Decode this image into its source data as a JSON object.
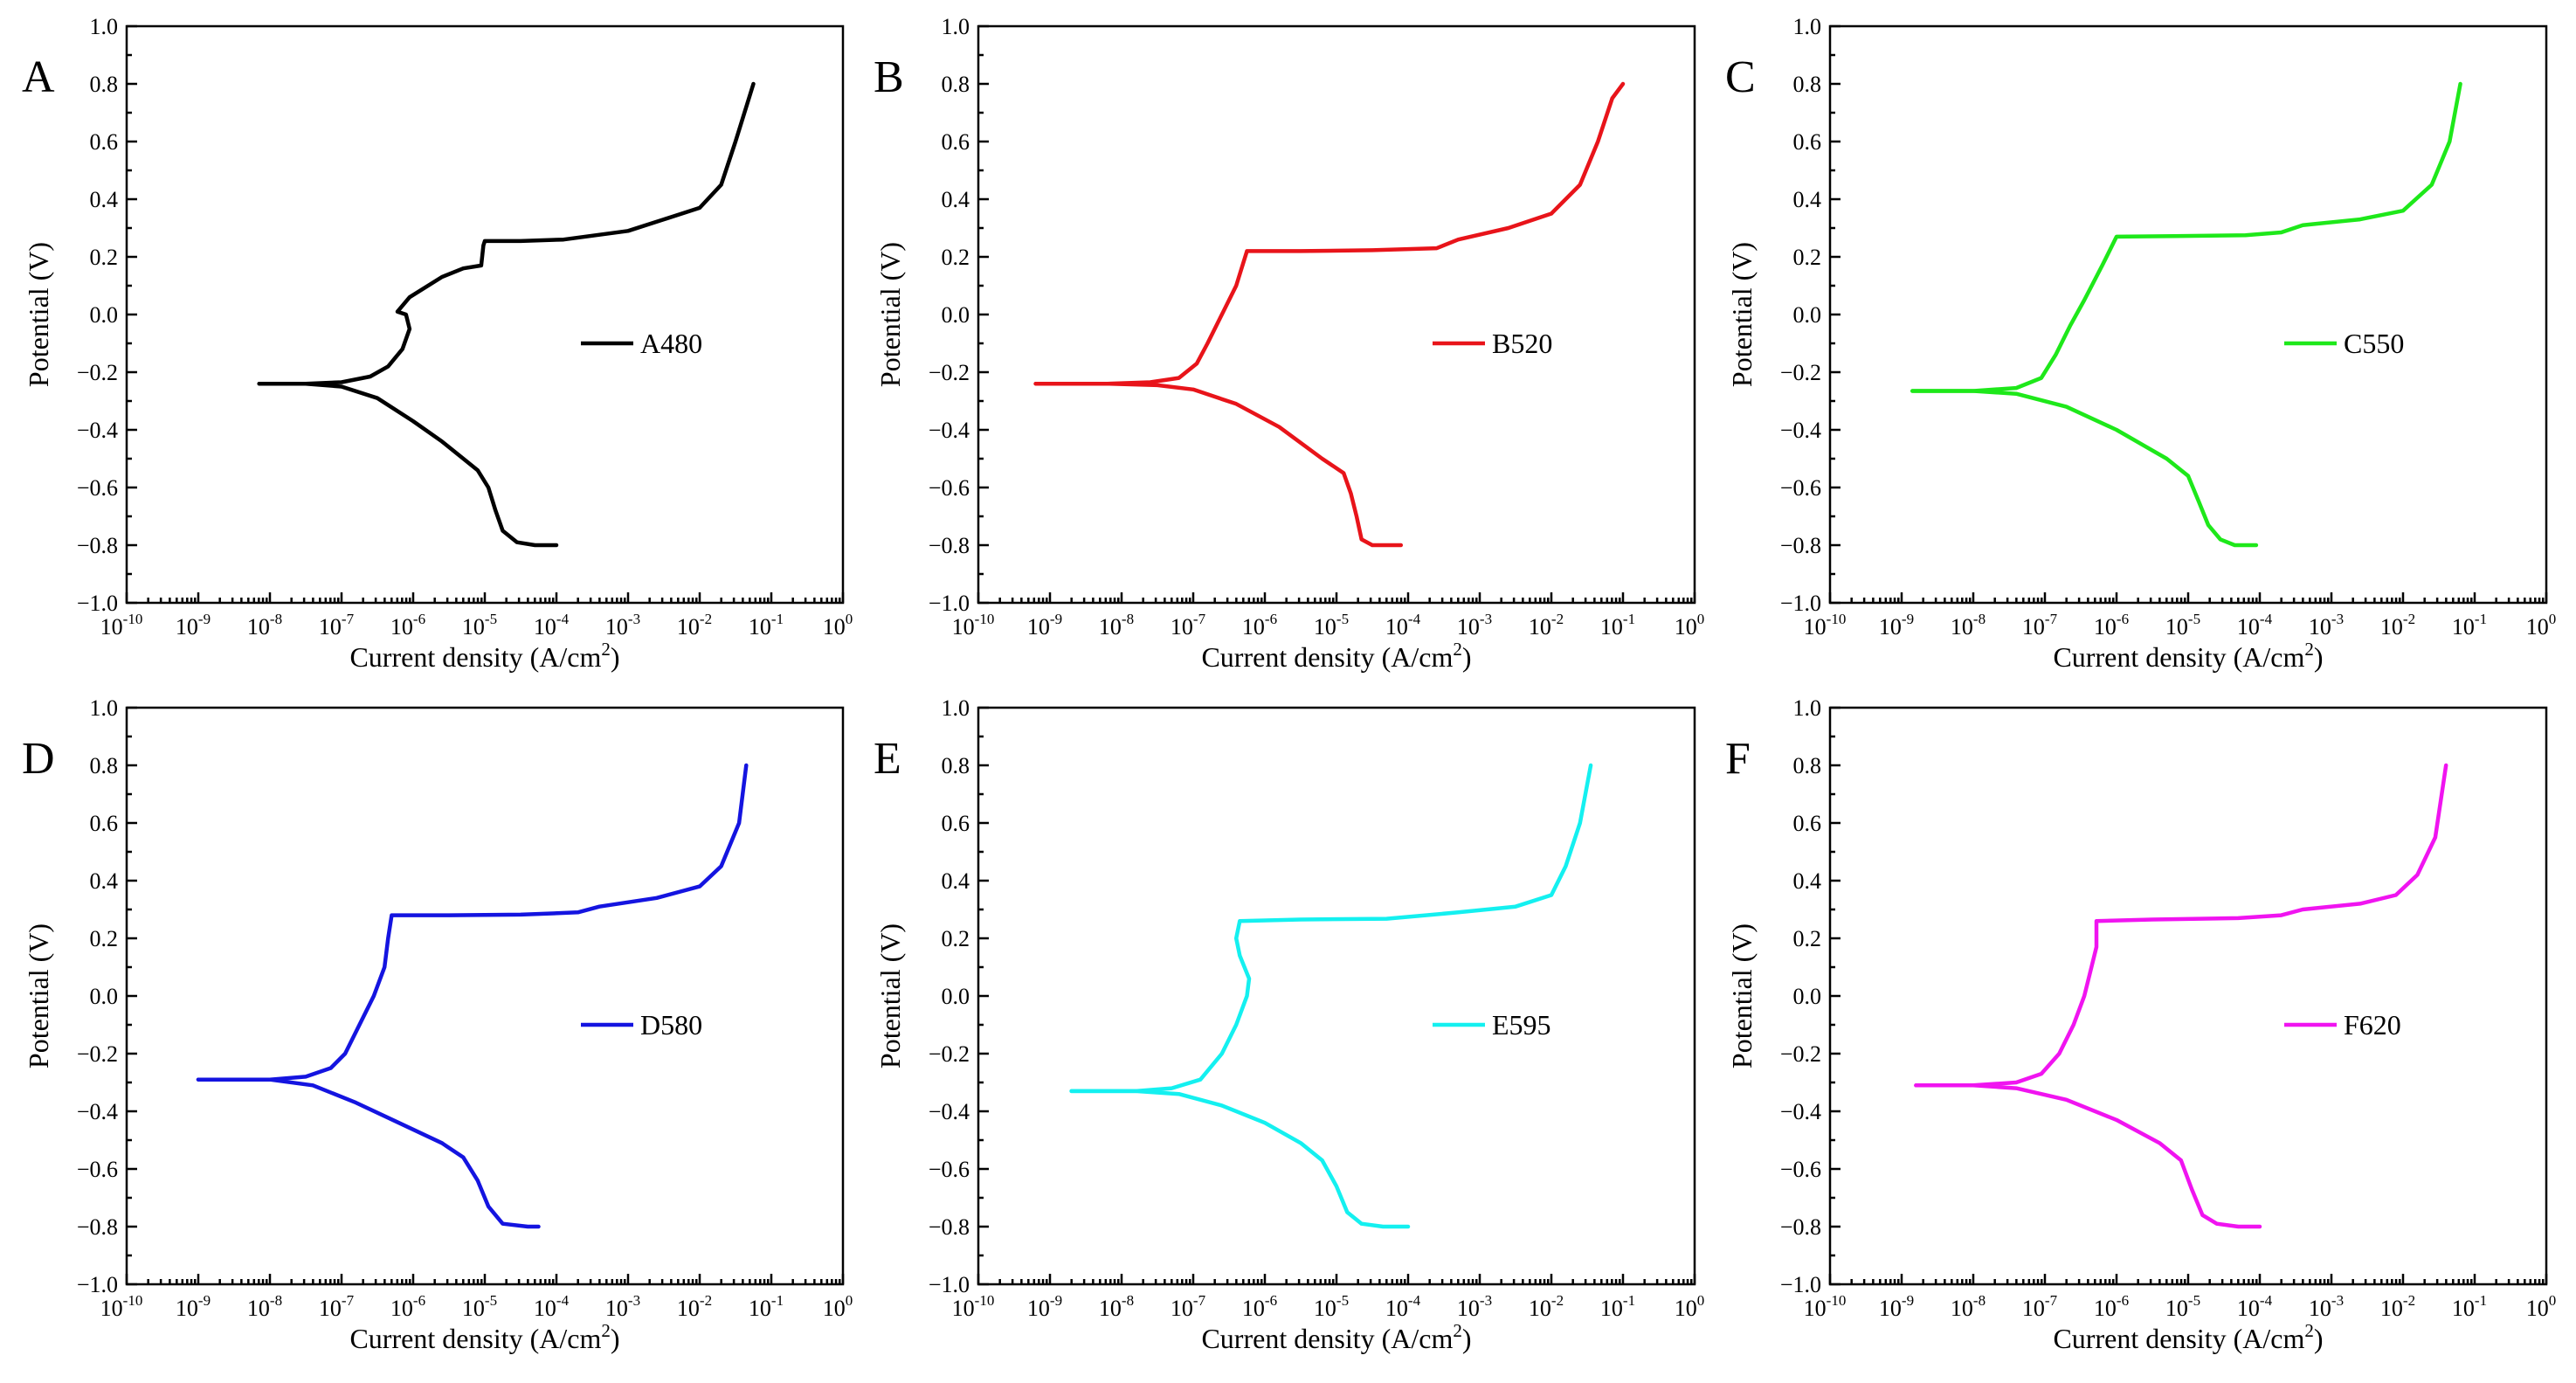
{
  "colors": {
    "A": "#000000",
    "B": "#e8141a",
    "C": "#1ee81a",
    "D": "#1414e0",
    "E": "#14f0f0",
    "F": "#f014f0"
  },
  "chart_data": [
    {
      "type": "line",
      "panel": "A",
      "legend": "A480",
      "color_key": "A",
      "xlabel": "Current density (A/cm",
      "xlabel_sup": "2",
      "xlabel_tail": ")",
      "ylabel": "Potential (V)",
      "xscale": "log",
      "xlim_exp": [
        -10,
        0
      ],
      "ylim": [
        -1.0,
        1.0
      ],
      "x_ticks": [
        {
          "base": "10",
          "exp": "-10"
        },
        {
          "base": "10",
          "exp": "-9"
        },
        {
          "base": "10",
          "exp": "-8"
        },
        {
          "base": "10",
          "exp": "-7"
        },
        {
          "base": "10",
          "exp": "-6"
        },
        {
          "base": "10",
          "exp": "-5"
        },
        {
          "base": "10",
          "exp": "-4"
        },
        {
          "base": "10",
          "exp": "-3"
        },
        {
          "base": "10",
          "exp": "-2"
        },
        {
          "base": "10",
          "exp": "-1"
        },
        {
          "base": "10",
          "exp": "0"
        }
      ],
      "y_ticks": [
        "−1.0",
        "−0.8",
        "−0.6",
        "−0.4",
        "−0.2",
        "0.0",
        "0.2",
        "0.4",
        "0.6",
        "0.8",
        "1.0"
      ],
      "anodic": [
        [
          -8.15,
          -0.24
        ],
        [
          -7.5,
          -0.24
        ],
        [
          -7.0,
          -0.235
        ],
        [
          -6.6,
          -0.215
        ],
        [
          -6.35,
          -0.18
        ],
        [
          -6.15,
          -0.12
        ],
        [
          -6.05,
          -0.05
        ],
        [
          -6.1,
          0.0
        ],
        [
          -6.22,
          0.01
        ],
        [
          -6.05,
          0.06
        ],
        [
          -5.6,
          0.13
        ],
        [
          -5.3,
          0.16
        ],
        [
          -5.05,
          0.17
        ],
        [
          -5.02,
          0.24
        ],
        [
          -5.0,
          0.255
        ],
        [
          -4.5,
          0.255
        ],
        [
          -3.9,
          0.26
        ],
        [
          -3.0,
          0.29
        ],
        [
          -2.5,
          0.33
        ],
        [
          -2.0,
          0.37
        ],
        [
          -1.7,
          0.45
        ],
        [
          -1.5,
          0.6
        ],
        [
          -1.35,
          0.72
        ],
        [
          -1.25,
          0.8
        ]
      ],
      "cathodic": [
        [
          -8.15,
          -0.24
        ],
        [
          -7.5,
          -0.24
        ],
        [
          -7.0,
          -0.25
        ],
        [
          -6.5,
          -0.29
        ],
        [
          -6.0,
          -0.37
        ],
        [
          -5.6,
          -0.44
        ],
        [
          -5.3,
          -0.5
        ],
        [
          -5.1,
          -0.54
        ],
        [
          -4.95,
          -0.6
        ],
        [
          -4.85,
          -0.68
        ],
        [
          -4.75,
          -0.75
        ],
        [
          -4.55,
          -0.79
        ],
        [
          -4.3,
          -0.8
        ],
        [
          -4.0,
          -0.8
        ]
      ]
    },
    {
      "type": "line",
      "panel": "B",
      "legend": "B520",
      "color_key": "B",
      "xlabel": "Current density (A/cm",
      "xlabel_sup": "2",
      "xlabel_tail": ")",
      "ylabel": "Potential (V)",
      "xscale": "log",
      "xlim_exp": [
        -10,
        0
      ],
      "ylim": [
        -1.0,
        1.0
      ],
      "x_ticks": [
        {
          "base": "10",
          "exp": "-10"
        },
        {
          "base": "10",
          "exp": "-9"
        },
        {
          "base": "10",
          "exp": "-8"
        },
        {
          "base": "10",
          "exp": "-7"
        },
        {
          "base": "10",
          "exp": "-6"
        },
        {
          "base": "10",
          "exp": "-5"
        },
        {
          "base": "10",
          "exp": "-4"
        },
        {
          "base": "10",
          "exp": "-3"
        },
        {
          "base": "10",
          "exp": "-2"
        },
        {
          "base": "10",
          "exp": "-1"
        },
        {
          "base": "10",
          "exp": "0"
        }
      ],
      "y_ticks": [
        "−1.0",
        "−0.8",
        "−0.6",
        "−0.4",
        "−0.2",
        "0.0",
        "0.2",
        "0.4",
        "0.6",
        "0.8",
        "1.0"
      ],
      "anodic": [
        [
          -9.2,
          -0.24
        ],
        [
          -8.2,
          -0.24
        ],
        [
          -7.6,
          -0.235
        ],
        [
          -7.2,
          -0.22
        ],
        [
          -6.95,
          -0.17
        ],
        [
          -6.8,
          -0.1
        ],
        [
          -6.6,
          0.0
        ],
        [
          -6.4,
          0.1
        ],
        [
          -6.25,
          0.22
        ],
        [
          -5.5,
          0.22
        ],
        [
          -4.5,
          0.223
        ],
        [
          -3.6,
          0.23
        ],
        [
          -3.3,
          0.26
        ],
        [
          -2.6,
          0.3
        ],
        [
          -2.0,
          0.35
        ],
        [
          -1.6,
          0.45
        ],
        [
          -1.35,
          0.6
        ],
        [
          -1.15,
          0.75
        ],
        [
          -1.0,
          0.8
        ]
      ],
      "cathodic": [
        [
          -9.2,
          -0.24
        ],
        [
          -8.2,
          -0.24
        ],
        [
          -7.5,
          -0.245
        ],
        [
          -7.0,
          -0.26
        ],
        [
          -6.4,
          -0.31
        ],
        [
          -5.8,
          -0.39
        ],
        [
          -5.2,
          -0.5
        ],
        [
          -4.9,
          -0.55
        ],
        [
          -4.8,
          -0.62
        ],
        [
          -4.72,
          -0.7
        ],
        [
          -4.65,
          -0.78
        ],
        [
          -4.5,
          -0.8
        ],
        [
          -4.1,
          -0.8
        ]
      ]
    },
    {
      "type": "line",
      "panel": "C",
      "legend": "C550",
      "color_key": "C",
      "xlabel": "Current density (A/cm",
      "xlabel_sup": "2",
      "xlabel_tail": ")",
      "ylabel": "Potential (V)",
      "xscale": "log",
      "xlim_exp": [
        -10,
        0
      ],
      "ylim": [
        -1.0,
        1.0
      ],
      "x_ticks": [
        {
          "base": "10",
          "exp": "-10"
        },
        {
          "base": "10",
          "exp": "-9"
        },
        {
          "base": "10",
          "exp": "-8"
        },
        {
          "base": "10",
          "exp": "-7"
        },
        {
          "base": "10",
          "exp": "-6"
        },
        {
          "base": "10",
          "exp": "-5"
        },
        {
          "base": "10",
          "exp": "-4"
        },
        {
          "base": "10",
          "exp": "-3"
        },
        {
          "base": "10",
          "exp": "-2"
        },
        {
          "base": "10",
          "exp": "-1"
        },
        {
          "base": "10",
          "exp": "0"
        }
      ],
      "y_ticks": [
        "−1.0",
        "−0.8",
        "−0.6",
        "−0.4",
        "−0.2",
        "0.0",
        "0.2",
        "0.4",
        "0.6",
        "0.8",
        "1.0"
      ],
      "anodic": [
        [
          -8.85,
          -0.265
        ],
        [
          -8.0,
          -0.265
        ],
        [
          -7.4,
          -0.255
        ],
        [
          -7.05,
          -0.22
        ],
        [
          -6.85,
          -0.14
        ],
        [
          -6.65,
          -0.04
        ],
        [
          -6.45,
          0.05
        ],
        [
          -6.2,
          0.17
        ],
        [
          -6.0,
          0.27
        ],
        [
          -5.2,
          0.272
        ],
        [
          -4.2,
          0.275
        ],
        [
          -3.7,
          0.285
        ],
        [
          -3.4,
          0.31
        ],
        [
          -2.6,
          0.33
        ],
        [
          -2.0,
          0.36
        ],
        [
          -1.6,
          0.45
        ],
        [
          -1.35,
          0.6
        ],
        [
          -1.2,
          0.8
        ]
      ],
      "cathodic": [
        [
          -8.85,
          -0.265
        ],
        [
          -8.0,
          -0.265
        ],
        [
          -7.4,
          -0.275
        ],
        [
          -6.7,
          -0.32
        ],
        [
          -6.0,
          -0.4
        ],
        [
          -5.3,
          -0.5
        ],
        [
          -5.0,
          -0.56
        ],
        [
          -4.85,
          -0.65
        ],
        [
          -4.72,
          -0.73
        ],
        [
          -4.55,
          -0.78
        ],
        [
          -4.35,
          -0.8
        ],
        [
          -4.05,
          -0.8
        ]
      ]
    },
    {
      "type": "line",
      "panel": "D",
      "legend": "D580",
      "color_key": "D",
      "xlabel": "Current density (A/cm",
      "xlabel_sup": "2",
      "xlabel_tail": ")",
      "ylabel": "Potential (V)",
      "xscale": "log",
      "xlim_exp": [
        -10,
        0
      ],
      "ylim": [
        -1.0,
        1.0
      ],
      "x_ticks": [
        {
          "base": "10",
          "exp": "-10"
        },
        {
          "base": "10",
          "exp": "-9"
        },
        {
          "base": "10",
          "exp": "-8"
        },
        {
          "base": "10",
          "exp": "-7"
        },
        {
          "base": "10",
          "exp": "-6"
        },
        {
          "base": "10",
          "exp": "-5"
        },
        {
          "base": "10",
          "exp": "-4"
        },
        {
          "base": "10",
          "exp": "-3"
        },
        {
          "base": "10",
          "exp": "-2"
        },
        {
          "base": "10",
          "exp": "-1"
        },
        {
          "base": "10",
          "exp": "0"
        }
      ],
      "y_ticks": [
        "−1.0",
        "−0.8",
        "−0.6",
        "−0.4",
        "−0.2",
        "0.0",
        "0.2",
        "0.4",
        "0.6",
        "0.8",
        "1.0"
      ],
      "anodic": [
        [
          -9.0,
          -0.29
        ],
        [
          -8.0,
          -0.29
        ],
        [
          -7.5,
          -0.28
        ],
        [
          -7.15,
          -0.25
        ],
        [
          -6.95,
          -0.2
        ],
        [
          -6.75,
          -0.1
        ],
        [
          -6.55,
          0.0
        ],
        [
          -6.4,
          0.1
        ],
        [
          -6.35,
          0.2
        ],
        [
          -6.3,
          0.28
        ],
        [
          -5.5,
          0.28
        ],
        [
          -4.5,
          0.282
        ],
        [
          -3.7,
          0.29
        ],
        [
          -3.4,
          0.31
        ],
        [
          -2.6,
          0.34
        ],
        [
          -2.0,
          0.38
        ],
        [
          -1.7,
          0.45
        ],
        [
          -1.45,
          0.6
        ],
        [
          -1.35,
          0.8
        ]
      ],
      "cathodic": [
        [
          -9.0,
          -0.29
        ],
        [
          -8.0,
          -0.29
        ],
        [
          -7.4,
          -0.31
        ],
        [
          -6.8,
          -0.37
        ],
        [
          -6.2,
          -0.44
        ],
        [
          -5.6,
          -0.51
        ],
        [
          -5.3,
          -0.56
        ],
        [
          -5.1,
          -0.64
        ],
        [
          -4.95,
          -0.73
        ],
        [
          -4.75,
          -0.79
        ],
        [
          -4.4,
          -0.8
        ],
        [
          -4.25,
          -0.8
        ]
      ]
    },
    {
      "type": "line",
      "panel": "E",
      "legend": "E595",
      "color_key": "E",
      "xlabel": "Current density (A/cm",
      "xlabel_sup": "2",
      "xlabel_tail": ")",
      "ylabel": "Potential (V)",
      "xscale": "log",
      "xlim_exp": [
        -10,
        0
      ],
      "ylim": [
        -1.0,
        1.0
      ],
      "x_ticks": [
        {
          "base": "10",
          "exp": "-10"
        },
        {
          "base": "10",
          "exp": "-9"
        },
        {
          "base": "10",
          "exp": "-8"
        },
        {
          "base": "10",
          "exp": "-7"
        },
        {
          "base": "10",
          "exp": "-6"
        },
        {
          "base": "10",
          "exp": "-5"
        },
        {
          "base": "10",
          "exp": "-4"
        },
        {
          "base": "10",
          "exp": "-3"
        },
        {
          "base": "10",
          "exp": "-2"
        },
        {
          "base": "10",
          "exp": "-1"
        },
        {
          "base": "10",
          "exp": "0"
        }
      ],
      "y_ticks": [
        "−1.0",
        "−0.8",
        "−0.6",
        "−0.4",
        "−0.2",
        "0.0",
        "0.2",
        "0.4",
        "0.6",
        "0.8",
        "1.0"
      ],
      "anodic": [
        [
          -8.7,
          -0.33
        ],
        [
          -7.8,
          -0.33
        ],
        [
          -7.3,
          -0.32
        ],
        [
          -6.9,
          -0.29
        ],
        [
          -6.6,
          -0.2
        ],
        [
          -6.4,
          -0.1
        ],
        [
          -6.25,
          0.0
        ],
        [
          -6.22,
          0.06
        ],
        [
          -6.35,
          0.14
        ],
        [
          -6.4,
          0.2
        ],
        [
          -6.35,
          0.26
        ],
        [
          -5.5,
          0.265
        ],
        [
          -4.3,
          0.268
        ],
        [
          -3.3,
          0.29
        ],
        [
          -2.5,
          0.31
        ],
        [
          -2.0,
          0.35
        ],
        [
          -1.8,
          0.45
        ],
        [
          -1.6,
          0.6
        ],
        [
          -1.45,
          0.8
        ]
      ],
      "cathodic": [
        [
          -8.7,
          -0.33
        ],
        [
          -7.8,
          -0.33
        ],
        [
          -7.2,
          -0.34
        ],
        [
          -6.6,
          -0.38
        ],
        [
          -6.0,
          -0.44
        ],
        [
          -5.5,
          -0.51
        ],
        [
          -5.2,
          -0.57
        ],
        [
          -5.0,
          -0.66
        ],
        [
          -4.85,
          -0.75
        ],
        [
          -4.65,
          -0.79
        ],
        [
          -4.35,
          -0.8
        ],
        [
          -4.0,
          -0.8
        ]
      ]
    },
    {
      "type": "line",
      "panel": "F",
      "legend": "F620",
      "color_key": "F",
      "xlabel": "Current density (A/cm",
      "xlabel_sup": "2",
      "xlabel_tail": ")",
      "ylabel": "Potential (V)",
      "xscale": "log",
      "xlim_exp": [
        -10,
        0
      ],
      "ylim": [
        -1.0,
        1.0
      ],
      "x_ticks": [
        {
          "base": "10",
          "exp": "-10"
        },
        {
          "base": "10",
          "exp": "-9"
        },
        {
          "base": "10",
          "exp": "-8"
        },
        {
          "base": "10",
          "exp": "-7"
        },
        {
          "base": "10",
          "exp": "-6"
        },
        {
          "base": "10",
          "exp": "-5"
        },
        {
          "base": "10",
          "exp": "-4"
        },
        {
          "base": "10",
          "exp": "-3"
        },
        {
          "base": "10",
          "exp": "-2"
        },
        {
          "base": "10",
          "exp": "-1"
        },
        {
          "base": "10",
          "exp": "0"
        }
      ],
      "y_ticks": [
        "−1.0",
        "−0.8",
        "−0.6",
        "−0.4",
        "−0.2",
        "0.0",
        "0.2",
        "0.4",
        "0.6",
        "0.8",
        "1.0"
      ],
      "anodic": [
        [
          -8.8,
          -0.31
        ],
        [
          -8.0,
          -0.31
        ],
        [
          -7.4,
          -0.3
        ],
        [
          -7.05,
          -0.27
        ],
        [
          -6.8,
          -0.2
        ],
        [
          -6.6,
          -0.1
        ],
        [
          -6.45,
          0.0
        ],
        [
          -6.35,
          0.1
        ],
        [
          -6.28,
          0.17
        ],
        [
          -6.28,
          0.26
        ],
        [
          -5.5,
          0.265
        ],
        [
          -4.3,
          0.27
        ],
        [
          -3.7,
          0.28
        ],
        [
          -3.4,
          0.3
        ],
        [
          -2.6,
          0.32
        ],
        [
          -2.1,
          0.35
        ],
        [
          -1.8,
          0.42
        ],
        [
          -1.55,
          0.55
        ],
        [
          -1.4,
          0.8
        ]
      ],
      "cathodic": [
        [
          -8.8,
          -0.31
        ],
        [
          -8.0,
          -0.31
        ],
        [
          -7.4,
          -0.32
        ],
        [
          -6.7,
          -0.36
        ],
        [
          -6.0,
          -0.43
        ],
        [
          -5.4,
          -0.51
        ],
        [
          -5.1,
          -0.57
        ],
        [
          -4.95,
          -0.67
        ],
        [
          -4.8,
          -0.76
        ],
        [
          -4.6,
          -0.79
        ],
        [
          -4.3,
          -0.8
        ],
        [
          -4.0,
          -0.8
        ]
      ]
    }
  ]
}
